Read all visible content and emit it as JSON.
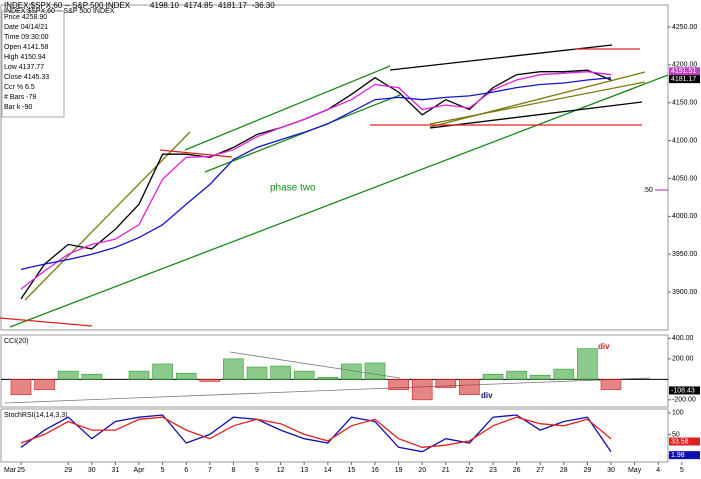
{
  "chart_data": [
    {
      "type": "line",
      "title": "INDEX:$SPX,60 -- S&P 500 INDEX",
      "header_values": [
        "4198.10",
        "4174.85",
        "4181.17",
        "-36.30"
      ],
      "info": [
        "Price 4258.90",
        "Date 04/14/21",
        "Time 09:30:00",
        "Open 4141.58",
        "High 4150.94",
        "Low 4137.77",
        "Close 4145.33",
        "Ccr % 6.5",
        "# Bars -79",
        "Bar k -90"
      ],
      "annotations": [
        "phase two",
        ".50"
      ],
      "categories": [
        "25",
        null,
        "29",
        "30",
        "31",
        "Apr",
        "5",
        "6",
        "7",
        "8",
        "9",
        "12",
        "13",
        "14",
        "15",
        "16",
        "19",
        "20",
        "21",
        "22",
        "23",
        "26",
        "27",
        "28",
        "29",
        "30",
        "May",
        "4",
        "5"
      ],
      "month_label": "Mar",
      "series": [
        {
          "color": "#000000",
          "values": [
            3891,
            3937,
            3963,
            3957,
            3983,
            4016,
            4082,
            4082,
            4078,
            4091,
            4108,
            4117,
            4128,
            4141,
            4161,
            4183,
            4164,
            4134,
            4154,
            4141,
            4170,
            4187,
            4191,
            4191,
            4193,
            4180,
            null,
            null,
            null
          ]
        },
        {
          "color": "#e020e0",
          "values": [
            3904,
            3928,
            3950,
            3963,
            3970,
            3989,
            4049,
            4078,
            4079,
            4088,
            4105,
            4117,
            4128,
            4141,
            4154,
            4174,
            4170,
            4141,
            4147,
            4143,
            4167,
            4180,
            4187,
            4189,
            4191,
            4187,
            null,
            null,
            null
          ]
        },
        {
          "color": "#1414c8",
          "values": [
            3930,
            3937,
            3943,
            3950,
            3959,
            3972,
            3989,
            4016,
            4042,
            4075,
            4091,
            4101,
            4111,
            4122,
            4138,
            4154,
            4157,
            4154,
            4157,
            4159,
            4164,
            4170,
            4174,
            4176,
            4180,
            4183,
            null,
            null,
            null
          ]
        }
      ],
      "price_markers": [
        {
          "value": 4191.51,
          "label": "4191.51",
          "color": "#c040c0"
        },
        {
          "value": 4181.17,
          "label": "4181.17",
          "color": "#000000"
        }
      ],
      "ylim": [
        3850,
        4279
      ],
      "yticks": [
        {
          "value": 4250,
          "label": "4250.00"
        },
        {
          "value": 4200,
          "label": "4200.00"
        },
        {
          "value": 4150,
          "label": "4150.00"
        },
        {
          "value": 4100,
          "label": "4100.00"
        },
        {
          "value": 4050,
          "label": "4050.00"
        },
        {
          "value": 4000,
          "label": "4000.00"
        },
        {
          "value": 3950,
          "label": "3950.00"
        },
        {
          "value": 3900,
          "label": "3900.00"
        }
      ]
    },
    {
      "type": "bar",
      "title": "CCI(20)",
      "annotations": [
        "div",
        "div"
      ],
      "values": [
        -150,
        -100,
        80,
        50,
        0,
        80,
        150,
        60,
        -20,
        200,
        120,
        130,
        80,
        20,
        150,
        160,
        -100,
        -200,
        -80,
        -150,
        50,
        80,
        40,
        100,
        300,
        -100,
        null,
        null,
        null
      ],
      "colors": {
        "positive": "#2e9e2e",
        "negative": "#d02020"
      },
      "price_markers": [
        {
          "value": -108.43,
          "label": "-108.43",
          "color": "#000000"
        }
      ],
      "ylim": [
        -270,
        433
      ],
      "yticks": [
        {
          "value": 400,
          "label": "400.00"
        },
        {
          "value": 200,
          "label": "200.00"
        },
        {
          "value": -200,
          "label": "-200.00"
        }
      ]
    },
    {
      "type": "line",
      "title": "StochRSI(14,14,3,3)",
      "series": [
        {
          "color": "#1010b0",
          "values": [
            20,
            60,
            90,
            40,
            80,
            90,
            95,
            30,
            50,
            90,
            85,
            60,
            40,
            30,
            90,
            80,
            20,
            10,
            40,
            30,
            90,
            95,
            60,
            80,
            90,
            10,
            null,
            null,
            null
          ]
        },
        {
          "color": "#e02020",
          "values": [
            30,
            50,
            80,
            60,
            60,
            85,
            90,
            60,
            40,
            70,
            85,
            75,
            50,
            35,
            70,
            85,
            40,
            20,
            25,
            35,
            70,
            90,
            75,
            70,
            85,
            40,
            null,
            null,
            null
          ]
        }
      ],
      "price_markers": [
        {
          "value": 33.58,
          "label": "33.58",
          "color": "#e02020"
        },
        {
          "value": 1.98,
          "label": "1.98",
          "color": "#1010b0"
        }
      ],
      "ylim": [
        -14,
        109
      ],
      "yticks": [
        100,
        50,
        0
      ]
    }
  ]
}
